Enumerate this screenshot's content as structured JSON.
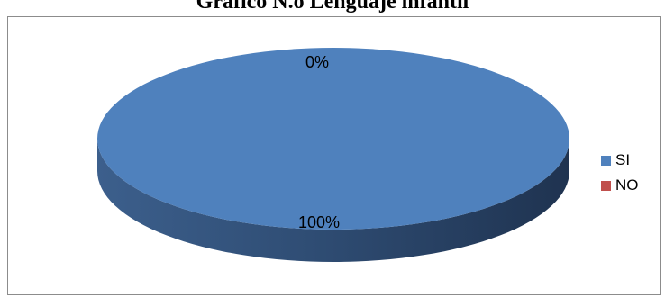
{
  "chart_data": {
    "type": "pie",
    "title": "Gráfico N.o Lenguaje infantil",
    "categories": [
      "SI",
      "NO"
    ],
    "values": [
      100,
      0
    ],
    "data_labels": [
      "100%",
      "0%"
    ],
    "colors": [
      "#4F81BD",
      "#C0504D"
    ],
    "legend_position": "right"
  }
}
